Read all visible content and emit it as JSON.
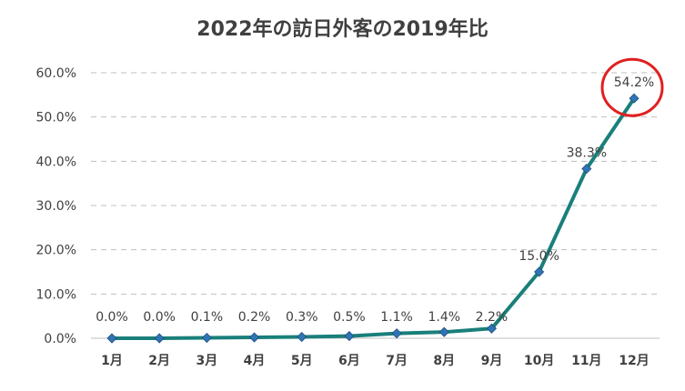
{
  "chart_data": {
    "type": "line",
    "title": "2022年の訪日外客の2019年比",
    "xlabel": "",
    "ylabel": "",
    "categories": [
      "1月",
      "2月",
      "3月",
      "4月",
      "5月",
      "6月",
      "7月",
      "8月",
      "9月",
      "10月",
      "11月",
      "12月"
    ],
    "series": [
      {
        "name": "2019年比",
        "values": [
          0.0,
          0.0,
          0.1,
          0.2,
          0.3,
          0.5,
          1.1,
          1.4,
          2.2,
          15.0,
          38.3,
          54.2
        ],
        "labels": [
          "0.0%",
          "0.0%",
          "0.1%",
          "0.2%",
          "0.3%",
          "0.5%",
          "1.1%",
          "1.4%",
          "2.2%",
          "15.0%",
          "38.3%",
          "54.2%"
        ],
        "color": "#1a7f7a",
        "marker_color": "#2e75b6"
      }
    ],
    "ylim": [
      0,
      60
    ],
    "yticks": [
      0,
      10,
      20,
      30,
      40,
      50,
      60
    ],
    "ytick_labels": [
      "0.0%",
      "10.0%",
      "20.0%",
      "30.0%",
      "40.0%",
      "50.0%",
      "60.0%"
    ],
    "grid": true,
    "gridline_color": "#bfbfbf",
    "legend": "none",
    "highlight": {
      "category": "12月",
      "shape": "circle",
      "color": "#e02020"
    }
  }
}
